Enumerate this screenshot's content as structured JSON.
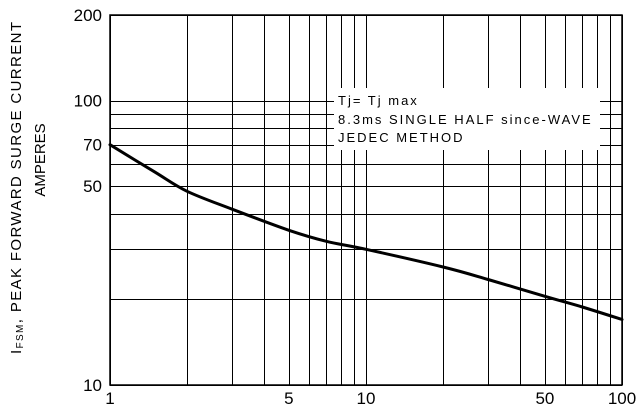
{
  "chart_data": {
    "type": "line",
    "x_scale": "log",
    "y_scale": "log",
    "xlim": [
      1,
      100
    ],
    "ylim": [
      10,
      200
    ],
    "grid": true,
    "x_gridlines": [
      1,
      2,
      3,
      4,
      5,
      6,
      7,
      8,
      9,
      10,
      20,
      30,
      40,
      50,
      60,
      70,
      80,
      90,
      100
    ],
    "y_gridlines": [
      10,
      20,
      30,
      40,
      50,
      60,
      70,
      80,
      90,
      100,
      200
    ],
    "x_ticks": [
      1,
      5,
      10,
      50,
      100
    ],
    "x_tick_labels": [
      "1",
      "5",
      "10",
      "50",
      "100"
    ],
    "y_ticks": [
      200,
      100,
      70,
      50,
      10
    ],
    "y_tick_labels": [
      "200",
      "100",
      "70",
      "50",
      "10"
    ],
    "ylabel": {
      "symbol": "I",
      "subscript": "FSM",
      "text": ", PEAK FORWARD SURGE CURRENT",
      "unit": "AMPERES"
    },
    "annotation": [
      "Tj= Tj max",
      "8.3ms SINGLE HALF since-WAVE",
      "JEDEC METHOD"
    ],
    "series": [
      {
        "x": [
          1,
          1.5,
          2,
          3,
          5,
          7,
          10,
          20,
          30,
          50,
          70,
          100
        ],
        "y": [
          70,
          56,
          48,
          41.5,
          35,
          32,
          30,
          26,
          23.5,
          20.5,
          18.8,
          17
        ],
        "color": "#000000"
      }
    ],
    "background": "#ffffff"
  }
}
